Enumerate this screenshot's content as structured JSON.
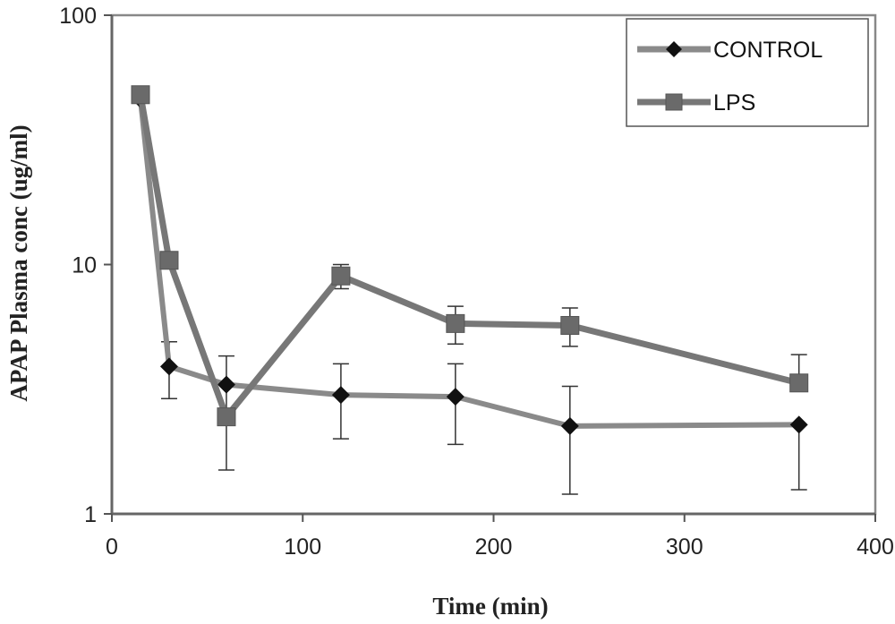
{
  "chart_data": {
    "type": "line",
    "xlabel": "Time (min)",
    "ylabel": "APAP Plasma conc (ug/ml)",
    "xlim": [
      0,
      400
    ],
    "ylim": [
      1,
      100
    ],
    "yscale": "log",
    "x_ticks": [
      "0",
      "100",
      "200",
      "300",
      "400"
    ],
    "y_ticks": [
      "1",
      "10",
      "100"
    ],
    "grid": false,
    "legend_position": "top-right",
    "series": [
      {
        "name": "CONTROL",
        "marker": "diamond",
        "color": "#8a8a8a",
        "markerColor": "#111111",
        "x": [
          15,
          30,
          60,
          120,
          180,
          240,
          360
        ],
        "y": [
          46,
          3.9,
          3.3,
          3.0,
          2.95,
          2.25,
          2.28
        ],
        "err_low": [
          null,
          2.9,
          1.5,
          2.0,
          1.9,
          1.2,
          1.25
        ],
        "err_high": [
          null,
          4.9,
          4.3,
          4.0,
          4.0,
          3.25,
          null
        ]
      },
      {
        "name": "LPS",
        "marker": "square",
        "color": "#777777",
        "markerColor": "#6a6a6a",
        "x": [
          15,
          30,
          60,
          120,
          180,
          240,
          360
        ],
        "y": [
          48,
          10.4,
          2.45,
          9.0,
          5.8,
          5.7,
          3.35
        ],
        "err_low": [
          null,
          null,
          null,
          8.0,
          4.8,
          4.7,
          null
        ],
        "err_high": [
          null,
          null,
          null,
          10.0,
          6.8,
          6.7,
          4.35
        ]
      }
    ]
  }
}
